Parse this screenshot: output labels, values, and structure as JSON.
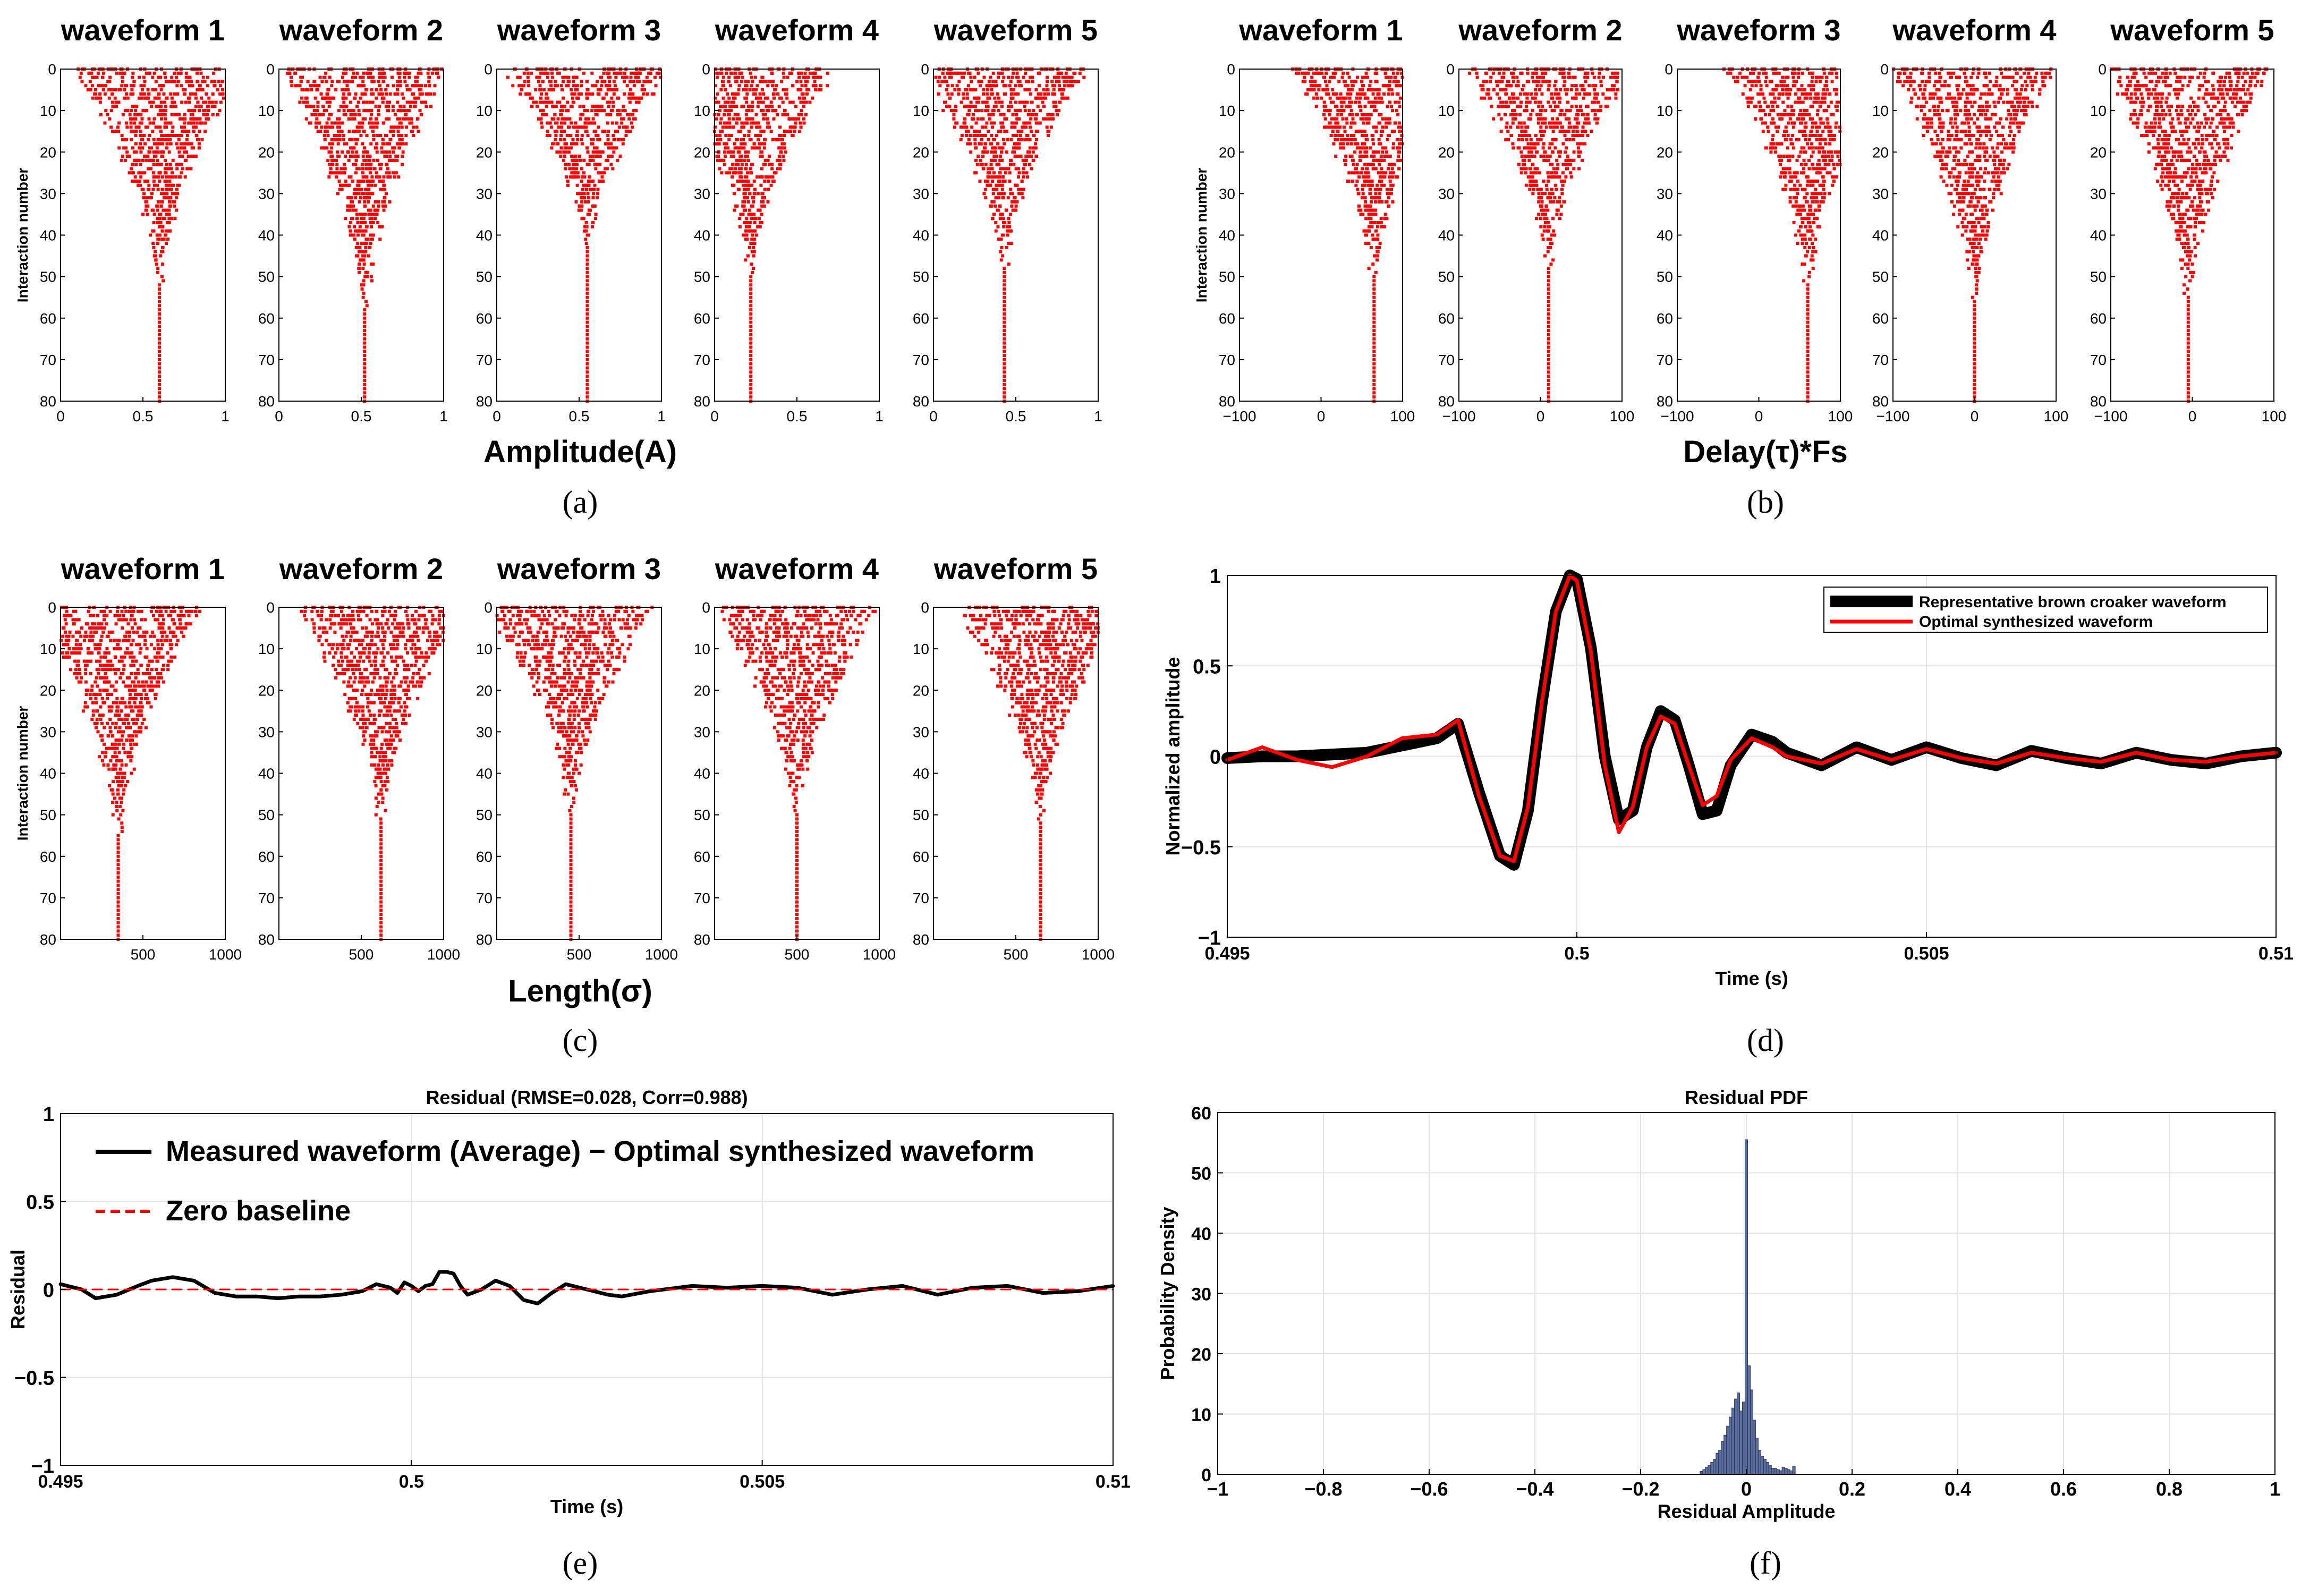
{
  "chart_data": [
    {
      "panel": "a",
      "type": "scatter",
      "subplot_titles": [
        "waveform 1",
        "waveform 2",
        "waveform 3",
        "waveform 4",
        "waveform 5"
      ],
      "xlabel": "Amplitude(A)",
      "ylabel": "Interaction number",
      "caption": "(a)",
      "ylim": [
        0,
        80
      ],
      "yticks": [
        "0",
        "10",
        "20",
        "30",
        "40",
        "50",
        "60",
        "70",
        "80"
      ],
      "xlim": [
        0,
        1
      ],
      "xticks": [
        [
          0,
          "0"
        ],
        [
          0.5,
          "0.5"
        ],
        [
          1,
          "1"
        ]
      ],
      "converged": [
        0.6,
        0.52,
        0.55,
        0.22,
        0.43
      ],
      "converge_iteration": [
        52,
        58,
        44,
        50,
        48
      ],
      "marker_color": "#ff0000"
    },
    {
      "panel": "b",
      "type": "scatter",
      "subplot_titles": [
        "waveform 1",
        "waveform 2",
        "waveform 3",
        "waveform 4",
        "waveform 5"
      ],
      "xlabel": "Delay(τ)*Fs",
      "ylabel": "Interaction number",
      "caption": "(b)",
      "ylim": [
        0,
        80
      ],
      "yticks": [
        "0",
        "10",
        "20",
        "30",
        "40",
        "50",
        "60",
        "70",
        "80"
      ],
      "xlim": [
        -100,
        100
      ],
      "xticks": [
        [
          -100,
          "−100"
        ],
        [
          0,
          "0"
        ],
        [
          100,
          "100"
        ]
      ],
      "converged": [
        65,
        10,
        60,
        0,
        -5
      ],
      "converge_iteration": [
        50,
        48,
        52,
        56,
        55
      ],
      "marker_color": "#ff0000"
    },
    {
      "panel": "c",
      "type": "scatter",
      "subplot_titles": [
        "waveform 1",
        "waveform 2",
        "waveform 3",
        "waveform 4",
        "waveform 5"
      ],
      "xlabel": "Length(σ)",
      "ylabel": "Interaction number",
      "caption": "(c)",
      "ylim": [
        0,
        80
      ],
      "yticks": [
        "0",
        "10",
        "20",
        "30",
        "40",
        "50",
        "60",
        "70",
        "80"
      ],
      "xlim": [
        0,
        1000
      ],
      "xticks": [
        [
          500,
          "500"
        ],
        [
          1000,
          "1000"
        ]
      ],
      "converged": [
        350,
        620,
        450,
        500,
        650
      ],
      "converge_iteration": [
        55,
        52,
        50,
        50,
        52
      ],
      "marker_color": "#ff0000"
    },
    {
      "panel": "d",
      "type": "line",
      "caption": "(d)",
      "xlabel": "Time (s)",
      "ylabel": "Normalized amplitude",
      "xlim": [
        0.495,
        0.51
      ],
      "ylim": [
        -1,
        1
      ],
      "xticks": [
        [
          0.495,
          "0.495"
        ],
        [
          0.5,
          "0.5"
        ],
        [
          0.505,
          "0.505"
        ],
        [
          0.51,
          "0.51"
        ]
      ],
      "yticks": [
        [
          -1,
          "−1"
        ],
        [
          -0.5,
          "−0.5"
        ],
        [
          0,
          "0"
        ],
        [
          0.5,
          "0.5"
        ],
        [
          1,
          "1"
        ]
      ],
      "legend": [
        "Representative brown croaker waveform",
        "Optimal synthesized waveform"
      ],
      "series": [
        {
          "name": "Representative brown croaker waveform",
          "color": "#000000",
          "x": [
            0.495,
            0.4955,
            0.496,
            0.4965,
            0.497,
            0.4975,
            0.498,
            0.4983,
            0.4986,
            0.4989,
            0.4991,
            0.4993,
            0.4995,
            0.4997,
            0.4999,
            0.5,
            0.5002,
            0.5004,
            0.5006,
            0.5008,
            0.501,
            0.5012,
            0.5014,
            0.5016,
            0.5018,
            0.502,
            0.5022,
            0.5025,
            0.5028,
            0.503,
            0.5035,
            0.504,
            0.5045,
            0.505,
            0.5055,
            0.506,
            0.5065,
            0.507,
            0.5075,
            0.508,
            0.5085,
            0.509,
            0.5095,
            0.51
          ],
          "y": [
            -0.01,
            0.0,
            0.0,
            0.01,
            0.02,
            0.06,
            0.1,
            0.18,
            -0.2,
            -0.55,
            -0.6,
            -0.3,
            0.3,
            0.8,
            1.0,
            0.98,
            0.6,
            0.0,
            -0.35,
            -0.3,
            0.05,
            0.25,
            0.2,
            -0.05,
            -0.32,
            -0.3,
            -0.05,
            0.12,
            0.08,
            0.02,
            -0.05,
            0.05,
            -0.02,
            0.05,
            -0.01,
            -0.05,
            0.03,
            -0.01,
            -0.04,
            0.02,
            -0.02,
            -0.04,
            0.0,
            0.02
          ]
        },
        {
          "name": "Optimal synthesized waveform",
          "color": "#ff0000",
          "x": [
            0.495,
            0.4955,
            0.496,
            0.4965,
            0.497,
            0.4975,
            0.498,
            0.4983,
            0.4986,
            0.4989,
            0.4991,
            0.4993,
            0.4995,
            0.4997,
            0.4999,
            0.5,
            0.5002,
            0.5004,
            0.5006,
            0.5008,
            0.501,
            0.5012,
            0.5014,
            0.5016,
            0.5018,
            0.502,
            0.5022,
            0.5025,
            0.5028,
            0.503,
            0.5035,
            0.504,
            0.5045,
            0.505,
            0.5055,
            0.506,
            0.5065,
            0.507,
            0.5075,
            0.508,
            0.5085,
            0.509,
            0.5095,
            0.51
          ],
          "y": [
            -0.02,
            0.05,
            -0.02,
            -0.06,
            0.0,
            0.1,
            0.12,
            0.2,
            -0.22,
            -0.55,
            -0.58,
            -0.28,
            0.3,
            0.8,
            1.0,
            0.97,
            0.58,
            -0.05,
            -0.42,
            -0.28,
            0.05,
            0.22,
            0.18,
            -0.05,
            -0.27,
            -0.22,
            -0.02,
            0.1,
            0.05,
            0.0,
            -0.04,
            0.04,
            -0.02,
            0.04,
            -0.01,
            -0.04,
            0.02,
            -0.01,
            -0.03,
            0.02,
            -0.02,
            -0.03,
            0.0,
            0.02
          ]
        }
      ]
    },
    {
      "panel": "e",
      "type": "line",
      "caption": "(e)",
      "title": "Residual (RMSE=0.028, Corr=0.988)",
      "xlabel": "Time (s)",
      "ylabel": "Residual",
      "xlim": [
        0.495,
        0.51
      ],
      "ylim": [
        -1,
        1
      ],
      "xticks": [
        [
          0.495,
          "0.495"
        ],
        [
          0.5,
          "0.5"
        ],
        [
          0.505,
          "0.505"
        ],
        [
          0.51,
          "0.51"
        ]
      ],
      "yticks": [
        [
          -1,
          "−1"
        ],
        [
          -0.5,
          "−0.5"
        ],
        [
          0,
          "0"
        ],
        [
          0.5,
          "0.5"
        ],
        [
          1,
          "1"
        ]
      ],
      "legend": [
        "Measured waveform (Average) − Optimal synthesized waveform",
        "Zero baseline"
      ],
      "series": [
        {
          "name": "Measured waveform (Average) − Optimal synthesized waveform",
          "color": "#000000",
          "x": [
            0.495,
            0.4953,
            0.4955,
            0.4958,
            0.4961,
            0.4963,
            0.4966,
            0.4969,
            0.4972,
            0.4975,
            0.4978,
            0.4981,
            0.4984,
            0.4987,
            0.499,
            0.4993,
            0.4995,
            0.4997,
            0.4998,
            0.4999,
            0.5,
            0.5001,
            0.5002,
            0.5003,
            0.5004,
            0.5005,
            0.5006,
            0.5007,
            0.5008,
            0.501,
            0.5012,
            0.5014,
            0.5016,
            0.5018,
            0.502,
            0.5022,
            0.5025,
            0.5028,
            0.503,
            0.5034,
            0.5038,
            0.504,
            0.5045,
            0.505,
            0.5055,
            0.506,
            0.5065,
            0.507,
            0.5075,
            0.508,
            0.5085,
            0.509,
            0.5095,
            0.51
          ],
          "y": [
            0.03,
            0.0,
            -0.05,
            -0.03,
            0.02,
            0.05,
            0.07,
            0.05,
            -0.02,
            -0.04,
            -0.04,
            -0.05,
            -0.04,
            -0.04,
            -0.03,
            -0.01,
            0.03,
            0.01,
            -0.02,
            0.04,
            0.02,
            -0.01,
            0.02,
            0.03,
            0.1,
            0.1,
            0.09,
            0.02,
            -0.03,
            0.0,
            0.05,
            0.02,
            -0.06,
            -0.08,
            -0.02,
            0.03,
            0.0,
            -0.03,
            -0.04,
            -0.01,
            0.01,
            0.02,
            0.01,
            0.02,
            0.01,
            -0.03,
            0.0,
            0.02,
            -0.03,
            0.01,
            0.02,
            -0.02,
            -0.01,
            0.02
          ]
        },
        {
          "name": "Zero baseline",
          "color": "#ff0000",
          "x": [
            0.495,
            0.51
          ],
          "y": [
            0,
            0
          ]
        }
      ]
    },
    {
      "panel": "f",
      "type": "bar",
      "caption": "(f)",
      "title": "Residual PDF",
      "xlabel": "Residual Amplitude",
      "ylabel": "Probability Density",
      "xlim": [
        -1,
        1
      ],
      "ylim": [
        0,
        60
      ],
      "xticks": [
        [
          -1,
          "−1"
        ],
        [
          -0.8,
          "−0.8"
        ],
        [
          -0.6,
          "−0.6"
        ],
        [
          -0.4,
          "−0.4"
        ],
        [
          -0.2,
          "−0.2"
        ],
        [
          0,
          "0"
        ],
        [
          0.2,
          "0.2"
        ],
        [
          0.4,
          "0.4"
        ],
        [
          0.6,
          "0.6"
        ],
        [
          0.8,
          "0.8"
        ],
        [
          1,
          "1"
        ]
      ],
      "yticks": [
        [
          0,
          "0"
        ],
        [
          10,
          "10"
        ],
        [
          20,
          "20"
        ],
        [
          30,
          "30"
        ],
        [
          40,
          "40"
        ],
        [
          50,
          "50"
        ],
        [
          60,
          "60"
        ]
      ],
      "bin_width": 0.005,
      "bin_centers": [
        -0.085,
        -0.08,
        -0.075,
        -0.07,
        -0.065,
        -0.06,
        -0.055,
        -0.05,
        -0.045,
        -0.04,
        -0.035,
        -0.03,
        -0.025,
        -0.02,
        -0.015,
        -0.01,
        -0.005,
        0.0,
        0.005,
        0.01,
        0.015,
        0.02,
        0.025,
        0.03,
        0.035,
        0.04,
        0.045,
        0.05,
        0.055,
        0.06,
        0.065,
        0.07,
        0.075,
        0.08,
        0.085,
        0.09
      ],
      "values": [
        0.5,
        0.8,
        1.2,
        1.5,
        2.0,
        2.5,
        3.5,
        4.0,
        5.5,
        6.5,
        8.0,
        9.5,
        11.0,
        12.5,
        13.5,
        10.5,
        12.0,
        55.5,
        18.0,
        14.0,
        9.0,
        6.0,
        4.0,
        3.0,
        2.5,
        2.0,
        1.5,
        1.0,
        1.0,
        0.8,
        0.6,
        1.2,
        1.0,
        0.8,
        0.6,
        1.3
      ],
      "bar_color": "#5a6ea0"
    }
  ]
}
